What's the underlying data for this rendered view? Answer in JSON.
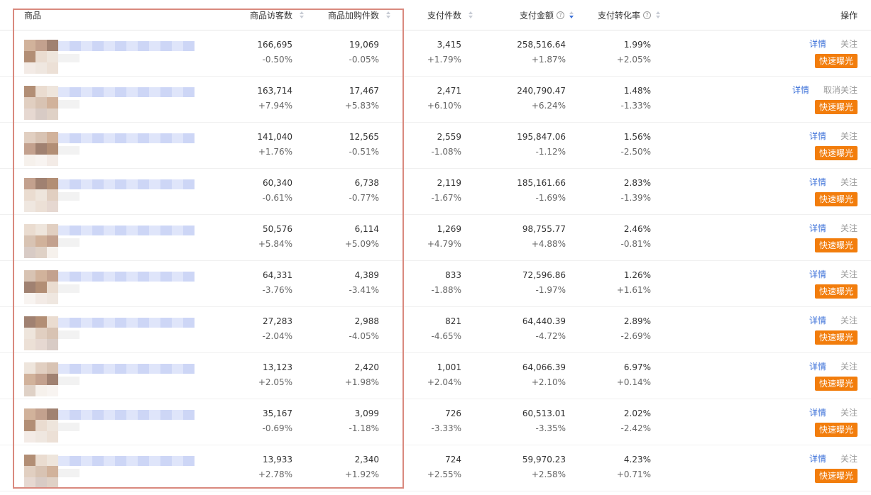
{
  "header": {
    "columns": [
      "商品",
      "商品访客数",
      "商品加购件数",
      "支付件数",
      "支付金额",
      "支付转化率",
      "操作"
    ]
  },
  "rows": [
    {
      "metrics": [
        [
          "166,695",
          "-0.50%"
        ],
        [
          "19,069",
          "-0.05%"
        ],
        [
          "3,415",
          "+1.79%"
        ],
        [
          "258,516.64",
          "+1.87%"
        ],
        [
          "1.99%",
          "+2.05%"
        ]
      ],
      "actions": [
        "详情",
        "关注",
        "快速曝光"
      ]
    },
    {
      "metrics": [
        [
          "163,714",
          "+7.94%"
        ],
        [
          "17,467",
          "+5.83%"
        ],
        [
          "2,471",
          "+6.10%"
        ],
        [
          "240,790.47",
          "+6.24%"
        ],
        [
          "1.48%",
          "-1.33%"
        ]
      ],
      "actions": [
        "详情",
        "取消关注",
        "快速曝光"
      ]
    },
    {
      "metrics": [
        [
          "141,040",
          "+1.76%"
        ],
        [
          "12,565",
          "-0.51%"
        ],
        [
          "2,559",
          "-1.08%"
        ],
        [
          "195,847.06",
          "-1.12%"
        ],
        [
          "1.56%",
          "-2.50%"
        ]
      ],
      "actions": [
        "详情",
        "关注",
        "快速曝光"
      ]
    },
    {
      "metrics": [
        [
          "60,340",
          "-0.61%"
        ],
        [
          "6,738",
          "-0.77%"
        ],
        [
          "2,119",
          "-1.67%"
        ],
        [
          "185,161.66",
          "-1.69%"
        ],
        [
          "2.83%",
          "-1.39%"
        ]
      ],
      "actions": [
        "详情",
        "关注",
        "快速曝光"
      ]
    },
    {
      "metrics": [
        [
          "50,576",
          "+5.84%"
        ],
        [
          "6,114",
          "+5.09%"
        ],
        [
          "1,269",
          "+4.79%"
        ],
        [
          "98,755.77",
          "+4.88%"
        ],
        [
          "2.46%",
          "-0.81%"
        ]
      ],
      "actions": [
        "详情",
        "关注",
        "快速曝光"
      ]
    },
    {
      "metrics": [
        [
          "64,331",
          "-3.76%"
        ],
        [
          "4,389",
          "-3.41%"
        ],
        [
          "833",
          "-1.88%"
        ],
        [
          "72,596.86",
          "-1.97%"
        ],
        [
          "1.26%",
          "+1.61%"
        ]
      ],
      "actions": [
        "详情",
        "关注",
        "快速曝光"
      ]
    },
    {
      "metrics": [
        [
          "27,283",
          "-2.04%"
        ],
        [
          "2,988",
          "-4.05%"
        ],
        [
          "821",
          "-4.65%"
        ],
        [
          "64,440.39",
          "-4.72%"
        ],
        [
          "2.89%",
          "-2.69%"
        ]
      ],
      "actions": [
        "详情",
        "关注",
        "快速曝光"
      ]
    },
    {
      "metrics": [
        [
          "13,123",
          "+2.05%"
        ],
        [
          "2,420",
          "+1.98%"
        ],
        [
          "1,001",
          "+2.04%"
        ],
        [
          "64,066.39",
          "+2.10%"
        ],
        [
          "6.97%",
          "+0.14%"
        ]
      ],
      "actions": [
        "详情",
        "关注",
        "快速曝光"
      ]
    },
    {
      "metrics": [
        [
          "35,167",
          "-0.69%"
        ],
        [
          "3,099",
          "-1.18%"
        ],
        [
          "726",
          "-3.33%"
        ],
        [
          "60,513.01",
          "-3.35%"
        ],
        [
          "2.02%",
          "-2.42%"
        ]
      ],
      "actions": [
        "详情",
        "关注",
        "快速曝光"
      ]
    },
    {
      "metrics": [
        [
          "13,933",
          "+2.78%"
        ],
        [
          "2,340",
          "+1.92%"
        ],
        [
          "724",
          "+2.55%"
        ],
        [
          "59,970.23",
          "+2.58%"
        ],
        [
          "4.23%",
          "+0.71%"
        ]
      ],
      "actions": [
        "详情",
        "关注",
        "快速曝光"
      ]
    }
  ]
}
